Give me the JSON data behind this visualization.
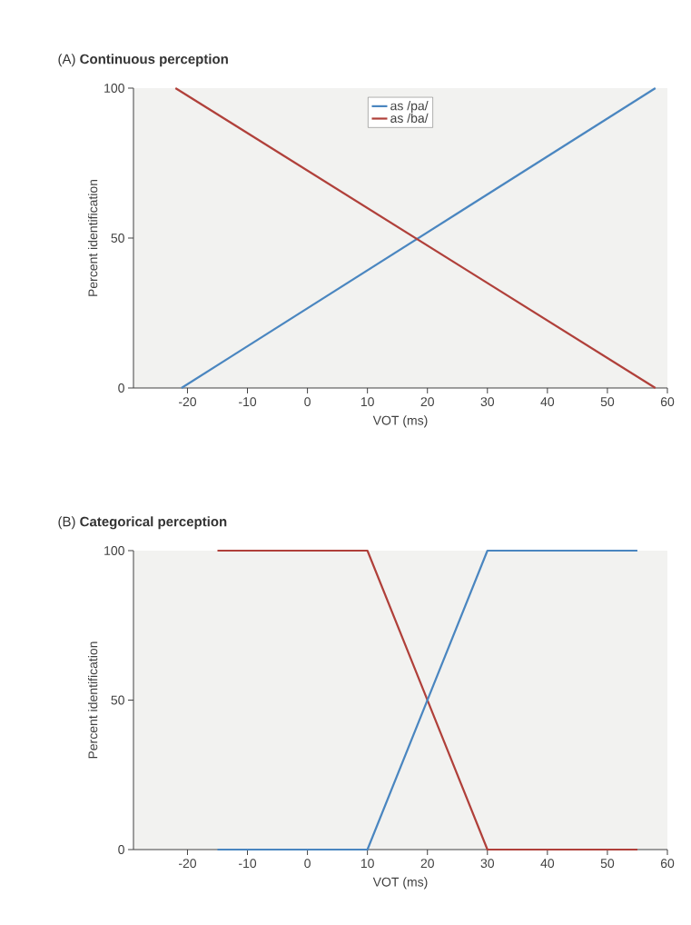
{
  "chart_data": [
    {
      "type": "line",
      "title": "(A) **Continuous perception**",
      "xlabel": "VOT (ms)",
      "ylabel": "Percent identification",
      "xlim": [
        -29,
        60
      ],
      "ylim": [
        0,
        100
      ],
      "xticks": [
        -20,
        -10,
        0,
        10,
        20,
        30,
        40,
        50,
        60
      ],
      "yticks": [
        0,
        50,
        100
      ],
      "legend": "top",
      "series": [
        {
          "name": "as /pa/",
          "color": "#4a86c0",
          "x": [
            -21,
            58
          ],
          "values": [
            0,
            100
          ]
        },
        {
          "name": "as /ba/",
          "color": "#b0403a",
          "x": [
            -22,
            58
          ],
          "values": [
            100,
            0
          ]
        }
      ]
    },
    {
      "type": "line",
      "title": "(B) **Categorical perception**",
      "xlabel": "VOT (ms)",
      "ylabel": "Percent identification",
      "xlim": [
        -29,
        60
      ],
      "ylim": [
        0,
        100
      ],
      "xticks": [
        -20,
        -10,
        0,
        10,
        20,
        30,
        40,
        50,
        60
      ],
      "yticks": [
        0,
        50,
        100
      ],
      "series": [
        {
          "color": "#b0403a",
          "x": [
            -15,
            10,
            30,
            55
          ],
          "values": [
            100,
            100,
            0,
            0
          ]
        },
        {
          "color": "#4a86c0",
          "x": [
            -15,
            10,
            30,
            55
          ],
          "values": [
            0,
            0,
            100,
            100
          ]
        }
      ]
    }
  ]
}
